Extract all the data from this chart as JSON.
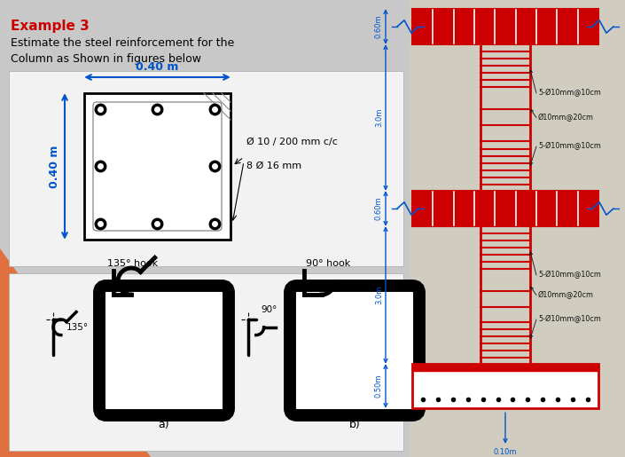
{
  "bg_color": "#c8c8c8",
  "orange_color": "#e07040",
  "title": "Example 3",
  "sub1": "Estimate the steel reinforcement for the",
  "sub2": "Column as Shown in figures below",
  "title_color": "#cc0000",
  "black": "#000000",
  "blue": "#0055cc",
  "red": "#cc0000",
  "white_panel": "#f2f2f2",
  "right_bg": "#d0ccc0",
  "ann_color": "#111111"
}
